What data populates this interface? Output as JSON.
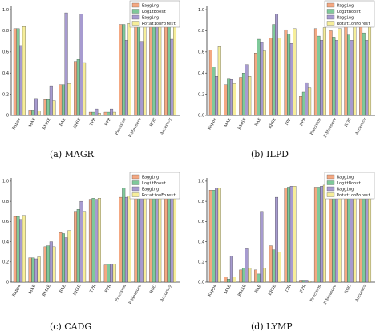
{
  "colors": [
    "#F4A882",
    "#7FC99A",
    "#A79BD0",
    "#F6EE9A"
  ],
  "chart_data": [
    {
      "type": "bar",
      "caption": "(a) MAGR",
      "categories": [
        "Kappa",
        "MAE",
        "RMSE",
        "RAE",
        "RRSE",
        "TPR",
        "FPR",
        "Precision",
        "F-Measure",
        "ROC",
        "Accuracy"
      ],
      "ylim": [
        0,
        1.0
      ],
      "yticks": [
        "0",
        "0.2",
        "0.4",
        "0.6",
        "0.8",
        "1.0"
      ],
      "legend": "top-right",
      "series": [
        {
          "name": "Bagging",
          "values": [
            0.82,
            0.05,
            0.15,
            0.29,
            0.51,
            0.03,
            0.03,
            0.86,
            0.85,
            0.98,
            0.85
          ]
        },
        {
          "name": "LogitBoost",
          "values": [
            0.82,
            0.05,
            0.15,
            0.29,
            0.53,
            0.03,
            0.03,
            0.86,
            0.85,
            0.98,
            0.85
          ]
        },
        {
          "name": "Bagging",
          "values": [
            0.66,
            0.16,
            0.28,
            0.97,
            0.96,
            0.06,
            0.06,
            0.71,
            0.7,
            0.92,
            0.72
          ]
        },
        {
          "name": "RotationForest",
          "values": [
            0.84,
            0.04,
            0.14,
            0.3,
            0.5,
            0.02,
            0.03,
            0.87,
            0.86,
            0.98,
            0.86
          ]
        }
      ]
    },
    {
      "type": "bar",
      "caption": "(b) ILPD",
      "categories": [
        "Kappa",
        "MAE",
        "RMSE",
        "RAE",
        "RRSE",
        "TPR",
        "FPR",
        "Precision",
        "F-Measure",
        "ROC",
        "Accuracy"
      ],
      "ylim": [
        0,
        1.0
      ],
      "yticks": [
        "0.0",
        "0.2",
        "0.4",
        "0.6",
        "0.8",
        "1.0"
      ],
      "legend": "top-right",
      "series": [
        {
          "name": "Bagging",
          "values": [
            0.62,
            0.29,
            0.36,
            0.59,
            0.73,
            0.81,
            0.18,
            0.82,
            0.8,
            0.89,
            0.84
          ]
        },
        {
          "name": "LogitBoost",
          "values": [
            0.46,
            0.35,
            0.4,
            0.72,
            0.86,
            0.77,
            0.22,
            0.75,
            0.74,
            0.76,
            0.78
          ]
        },
        {
          "name": "Bagging",
          "values": [
            0.37,
            0.34,
            0.48,
            0.69,
            0.96,
            0.68,
            0.31,
            0.71,
            0.71,
            0.71,
            0.71
          ]
        },
        {
          "name": "RotationForest",
          "values": [
            0.65,
            0.3,
            0.37,
            0.61,
            0.73,
            0.82,
            0.26,
            0.83,
            0.82,
            0.9,
            0.84
          ]
        }
      ]
    },
    {
      "type": "bar",
      "caption": "(c) CADG",
      "categories": [
        "Kappa",
        "MAE",
        "RMSE",
        "RAE",
        "RRSE",
        "TPR",
        "FPR",
        "Precision",
        "F-Measure",
        "ROC",
        "Accuracy"
      ],
      "ylim": [
        0,
        1.0
      ],
      "yticks": [
        "0",
        "0.2",
        "0.4",
        "0.6",
        "0.8",
        "1.0"
      ],
      "legend": "top-right",
      "series": [
        {
          "name": "Bagging",
          "values": [
            0.65,
            0.24,
            0.35,
            0.49,
            0.7,
            0.82,
            0.17,
            0.84,
            0.83,
            0.89,
            0.83
          ]
        },
        {
          "name": "LogitBoost",
          "values": [
            0.65,
            0.24,
            0.36,
            0.48,
            0.72,
            0.83,
            0.18,
            0.93,
            0.83,
            0.89,
            0.83
          ]
        },
        {
          "name": "Bagging",
          "values": [
            0.62,
            0.23,
            0.4,
            0.44,
            0.8,
            0.82,
            0.18,
            0.84,
            0.83,
            0.86,
            0.83
          ]
        },
        {
          "name": "RotationForest",
          "values": [
            0.66,
            0.25,
            0.35,
            0.51,
            0.7,
            0.83,
            0.18,
            0.85,
            0.83,
            0.9,
            0.83
          ]
        }
      ]
    },
    {
      "type": "bar",
      "caption": "(d) LYMP",
      "categories": [
        "Kappa",
        "MAE",
        "RMSE",
        "RAE",
        "RRSE",
        "TPR",
        "FPR",
        "Precision",
        "F-Measure",
        "ROC",
        "Accuracy"
      ],
      "ylim": [
        0,
        1.0
      ],
      "yticks": [
        "0.0",
        "0.2",
        "0.4",
        "0.6",
        "0.8",
        "1.0"
      ],
      "legend": "top-right",
      "series": [
        {
          "name": "Bagging",
          "values": [
            0.91,
            0.05,
            0.12,
            0.12,
            0.36,
            0.93,
            0.02,
            0.94,
            0.93,
            0.99,
            0.94
          ]
        },
        {
          "name": "LogitBoost",
          "values": [
            0.91,
            0.03,
            0.14,
            0.08,
            0.32,
            0.94,
            0.02,
            0.94,
            0.94,
            0.99,
            0.94
          ]
        },
        {
          "name": "Bagging",
          "values": [
            0.93,
            0.26,
            0.33,
            0.7,
            0.84,
            0.95,
            0.02,
            0.95,
            0.95,
            0.98,
            0.95
          ]
        },
        {
          "name": "RotationForest",
          "values": [
            0.93,
            0.05,
            0.14,
            0.14,
            0.3,
            0.95,
            0.01,
            0.96,
            0.95,
            0.99,
            0.96
          ]
        }
      ]
    }
  ]
}
